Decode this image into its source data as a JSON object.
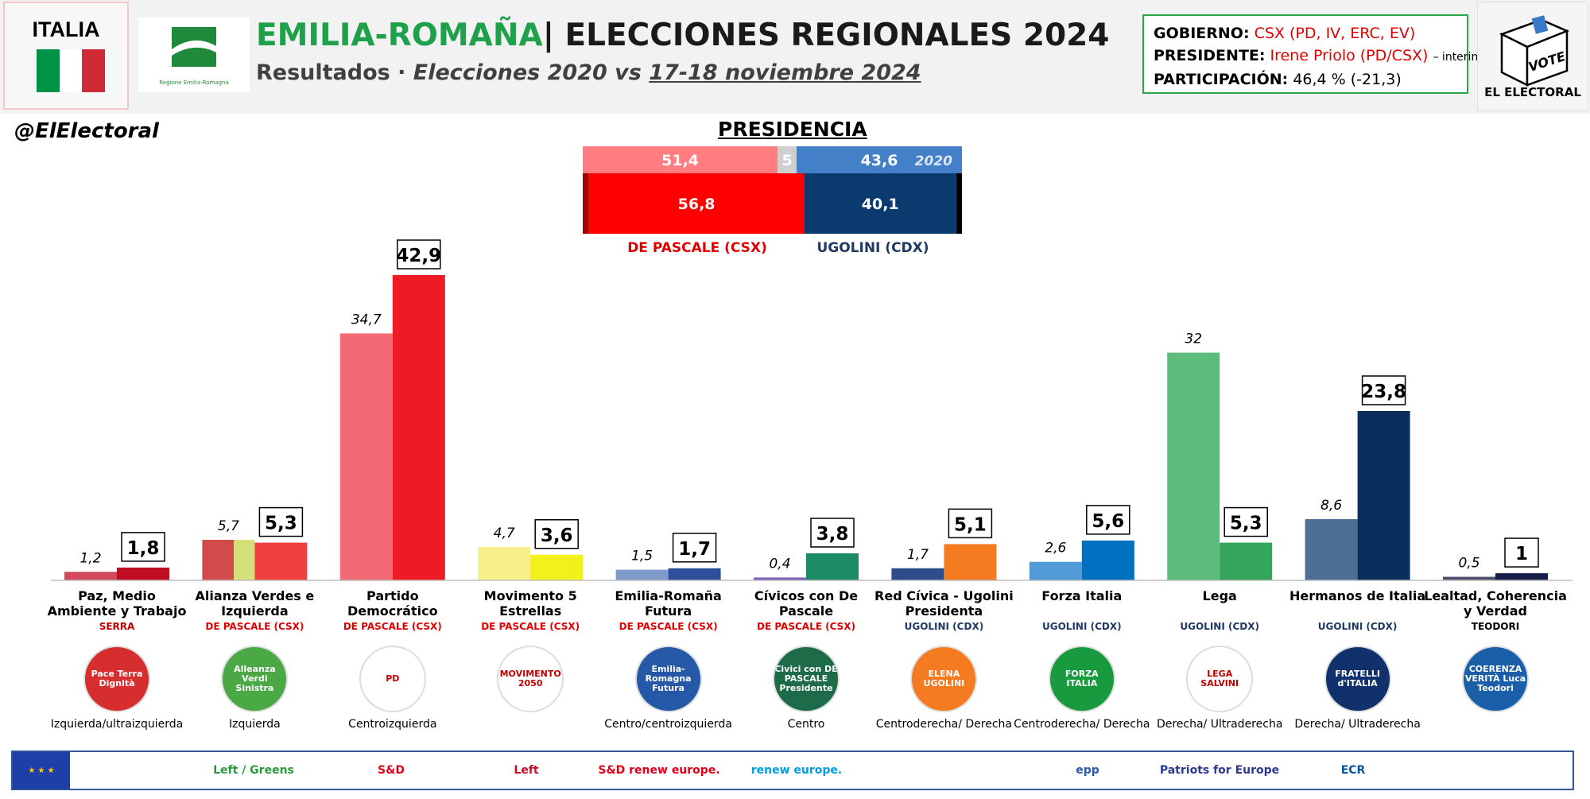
{
  "header": {
    "country": "ITALIA",
    "title_region": "EMILIA-ROMAÑA",
    "title_rest": "| ELECCIONES REGIONALES 2024",
    "subtitle_lead": "Resultados",
    "subtitle_sep": " · ",
    "subtitle_compare": "Elecciones 2020 vs ",
    "subtitle_date": "17-18 noviembre 2024",
    "region_logo_text": "Regione Emilia-Romagna"
  },
  "gov_box": {
    "gobierno_label": "GOBIERNO:",
    "gobierno_value": "CSX (PD, IV, ERC, EV)",
    "presidente_label": "PRESIDENTE:",
    "presidente_value": "Irene Priolo (PD/CSX)",
    "presidente_note": "– interino",
    "participacion_label": "PARTICIPACIÓN:",
    "participacion_value": "46,4 % (-21,3)"
  },
  "brand": {
    "handle": "@ElElectoral",
    "vote_label": "VOTE",
    "name": "EL ELECTORAL"
  },
  "colors": {
    "flag_green": "#009246",
    "flag_white": "#ffffff",
    "flag_red": "#ce2b37",
    "csx_label": "#e00000",
    "cdx_label": "#1f3864"
  },
  "presidency": {
    "title": "PRESIDENCIA",
    "year_2020_label": "2020",
    "bar_2020": [
      {
        "value": 51.4,
        "label": "51,4",
        "color": "#ff7c80"
      },
      {
        "value": 5,
        "label": "5",
        "color": "#d0cece"
      },
      {
        "value": 43.6,
        "label": "43,6",
        "color": "#4480c8"
      }
    ],
    "bar_2024": [
      {
        "value": 1.6,
        "label": "",
        "color": "#a00000"
      },
      {
        "value": 56.8,
        "label": "56,8",
        "color": "#ff0000"
      },
      {
        "value": 40.1,
        "label": "40,1",
        "color": "#0b3b6e"
      },
      {
        "value": 1.5,
        "label": "",
        "color": "#000000"
      }
    ],
    "candidates": [
      {
        "name": "DE PASCALE (CSX)",
        "color": "#e00000"
      },
      {
        "name": "UGOLINI (CDX)",
        "color": "#1f3864"
      }
    ]
  },
  "chart_data": {
    "type": "bar",
    "title": "",
    "xlabel": "",
    "ylabel": "",
    "ylim": [
      0,
      45
    ],
    "series_years": [
      "2020",
      "2024"
    ],
    "categories": [
      "Paz, Medio Ambiente y Trabajo",
      "Alianza Verdes e Izquierda",
      "Partido Democrático",
      "Movimento 5 Estrellas",
      "Emilia-Romaña Futura",
      "Cívicos con De Pascale",
      "Red Cívica - Ugolini Presidenta",
      "Forza Italia",
      "Lega",
      "Hermanos de Italia",
      "Lealtad, Coherencia y Verdad"
    ],
    "series": [
      {
        "values": [
          1.2,
          5.7,
          34.7,
          4.7,
          1.5,
          0.4,
          1.7,
          2.6,
          32,
          8.6,
          0.5
        ],
        "labels": [
          "1,2",
          "5,7",
          "34,7",
          "4,7",
          "1,5",
          "0,4",
          "1,7",
          "2,6",
          "32",
          "8,6",
          "0,5"
        ]
      },
      {
        "values": [
          1.8,
          5.3,
          42.9,
          3.6,
          1.7,
          3.8,
          5.1,
          5.6,
          5.3,
          23.8,
          1
        ],
        "labels": [
          "1,8",
          "5,3",
          "42,9",
          "3,6",
          "1,7",
          "3,8",
          "5,1",
          "5,6",
          "5,3",
          "23,8",
          "1"
        ]
      }
    ],
    "colors_2020": [
      "#d0485a",
      "#d14b4b",
      "#f26b74",
      "#f7f08a",
      "#7f9ccc",
      "#7c5fb4",
      "#2e4c8c",
      "#4f9ad7",
      "#5dbb7e",
      "#4f6e94",
      "#4d4d6e"
    ],
    "colors_2024": [
      "#c00d22",
      "#ef4040",
      "#ed1c24",
      "#f2f21a",
      "#2f4f9a",
      "#1c8a62",
      "#f47b20",
      "#0070c0",
      "#33a65b",
      "#0a2f5c",
      "#141e48"
    ],
    "avs_2020_split": [
      {
        "value": 3.8,
        "color": "#d14b4b"
      },
      {
        "value": 1.9,
        "color": "#d6e07a"
      }
    ]
  },
  "parties": [
    {
      "name": "Paz, Medio Ambiente y Trabajo",
      "bloc": "SERRA",
      "bloc_color": "#c00000",
      "ideology": "Izquierda/ultraizquierda",
      "logo_text": "Pace Terra Dignità",
      "logo_color": "#d62e2e"
    },
    {
      "name": "Alianza Verdes e Izquierda",
      "bloc": "DE PASCALE (CSX)",
      "bloc_color": "#e00000",
      "ideology": "Izquierda",
      "logo_text": "Alleanza Verdi Sinistra",
      "logo_color": "#4aa845"
    },
    {
      "name": "Partido Democrático",
      "bloc": "DE PASCALE (CSX)",
      "bloc_color": "#e00000",
      "ideology": "Centroizquierda",
      "logo_text": "PD",
      "logo_color": "#ffffff"
    },
    {
      "name": "Movimento 5 Estrellas",
      "bloc": "DE PASCALE (CSX)",
      "bloc_color": "#e00000",
      "ideology": "",
      "logo_text": "MOVIMENTO 2050",
      "logo_color": "#ffffff"
    },
    {
      "name": "Emilia-Romaña Futura",
      "bloc": "DE PASCALE (CSX)",
      "bloc_color": "#e00000",
      "ideology": "Centro/centroizquierda",
      "logo_text": "Emilia-Romagna Futura",
      "logo_color": "#2559a8"
    },
    {
      "name": "Cívicos con De Pascale",
      "bloc": "DE PASCALE (CSX)",
      "bloc_color": "#e00000",
      "ideology": "Centro",
      "logo_text": "Civici con DE PASCALE Presidente",
      "logo_color": "#1e6b4a"
    },
    {
      "name": "Red Cívica - Ugolini Presidenta",
      "bloc": "UGOLINI (CDX)",
      "bloc_color": "#1f3864",
      "ideology": "Centroderecha/ Derecha",
      "logo_text": "ELENA UGOLINI",
      "logo_color": "#f47b20"
    },
    {
      "name": "Forza Italia",
      "bloc": "UGOLINI (CDX)",
      "bloc_color": "#1f3864",
      "ideology": "Centroderecha/ Derecha",
      "logo_text": "FORZA ITALIA",
      "logo_color": "#1a9a3e"
    },
    {
      "name": "Lega",
      "bloc": "UGOLINI (CDX)",
      "bloc_color": "#1f3864",
      "ideology": "Derecha/ Ultraderecha",
      "logo_text": "LEGA SALVINI",
      "logo_color": "#ffffff"
    },
    {
      "name": "Hermanos de Italia",
      "bloc": "UGOLINI (CDX)",
      "bloc_color": "#1f3864",
      "ideology": "Derecha/ Ultraderecha",
      "logo_text": "FRATELLI d'ITALIA",
      "logo_color": "#10316b"
    },
    {
      "name": "Lealtad, Coherencia y Verdad",
      "bloc": "TEODORI",
      "bloc_color": "#000000",
      "ideology": "",
      "logo_text": "COERENZA VERITÀ Luca Teodori",
      "logo_color": "#1a5fa8"
    }
  ],
  "eu_groups": [
    {
      "label": "Left / Greens",
      "color": "#2a9a3e"
    },
    {
      "label": "S&D",
      "color": "#e2001a"
    },
    {
      "label": "Left",
      "color": "#c8102e"
    },
    {
      "label": "S&D renew europe.",
      "color": "#e2001a"
    },
    {
      "label": "renew europe.",
      "color": "#00a0e3"
    },
    {
      "label": "epp",
      "color": "#2b5ba8"
    },
    {
      "label": "Patriots for Europe",
      "color": "#2b3a8f"
    },
    {
      "label": "ECR",
      "color": "#0a55a3"
    }
  ]
}
